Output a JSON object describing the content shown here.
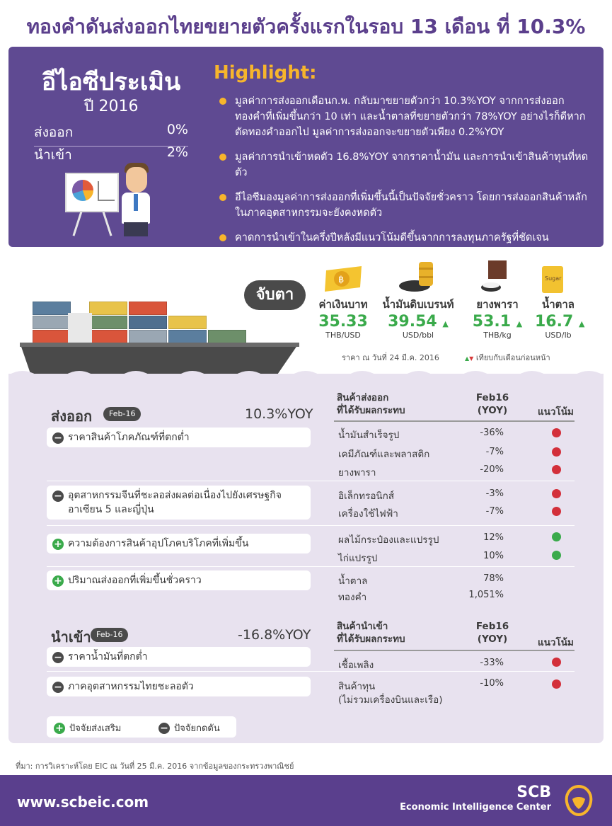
{
  "title": "ทองคำดันส่งออกไทยขยายตัวครั้งแรกในรอบ 13 เดือน ที่ 10.3%",
  "hero": {
    "eic_title": "อีไอซีประเมิน",
    "year": "ปี 2016",
    "export_label": "ส่งออก",
    "export_value": "0%",
    "import_label": "นำเข้า",
    "import_value": "2%",
    "highlight_title": "Highlight:",
    "highlights": [
      "มูลค่าการส่งออกเดือนก.พ. กลับมาขยายตัวกว่า 10.3%YOY จากการส่งออกทองคำที่เพิ่มขึ้นกว่า 10 เท่า และน้ำตาลที่ขยายตัวกว่า 78%YOY อย่างไรก็ดีหากตัดทองคำออกไป มูลค่าการส่งออกจะขยายตัวเพียง 0.2%YOY",
      "มูลค่าการนำเข้าหดตัว 16.8%YOY จากราคาน้ำมัน และการนำเข้าสินค้าทุนที่หดตัว",
      "อีไอซีมองมูลค่าการส่งออกที่เพิ่มขึ้นนี้เป็นปัจจัยชั่วคราว โดยการส่งออกสินค้าหลักในภาคอุตสาหกรรมจะยังคงหดตัว",
      "คาดการนำเข้าในครึ่งปีหลังมีแนวโน้มดีขึ้นจากการลงทุนภาครัฐที่ชัดเจน"
    ]
  },
  "watch": {
    "label": "จับตา",
    "items": [
      {
        "name": "ค่าเงินบาท",
        "value": "35.33",
        "unit": "THB/USD",
        "arrow": ""
      },
      {
        "name": "น้ำมันดิบเบรนท์",
        "value": "39.54",
        "unit": "USD/bbl",
        "arrow": "▲"
      },
      {
        "name": "ยางพารา",
        "value": "53.1",
        "unit": "THB/kg",
        "arrow": "▲"
      },
      {
        "name": "น้ำตาล",
        "value": "16.7",
        "unit": "USD/lb",
        "arrow": "▲"
      }
    ],
    "price_note": "ราคา ณ วันที่ 24 มี.ค. 2016",
    "compare_note": "เทียบกับเดือนก่อนหน้า",
    "sugar_label": "Sugar"
  },
  "exports": {
    "label": "ส่งออก",
    "badge": "Feb-16",
    "yoy": "10.3%YOY",
    "col_product": "สินค้าส่งออก",
    "col_product2": "ที่ได้รับผลกระทบ",
    "col_period": "Feb16",
    "col_period2": "(YOY)",
    "col_trend": "แนวโน้ม",
    "factors": [
      "ราคาสินค้าโภคภัณฑ์ที่ตกต่ำ",
      "อุตสาหกรรมจีนที่ชะลอส่งผลต่อเนื่องไปยังเศรษฐกิจอาเซียน 5 และญี่ปุ่น",
      "ความต้องการสินค้าอุปโภคบริโภคที่เพิ่มขึ้น",
      "ปริมาณส่งออกที่เพิ่มขึ้นชั่วคราว"
    ],
    "rows": [
      {
        "name": "น้ำมันสำเร็จรูป",
        "value": "-36%"
      },
      {
        "name": "เคมีภัณฑ์และพลาสติก",
        "value": "-7%"
      },
      {
        "name": "ยางพารา",
        "value": "-20%"
      },
      {
        "name": "อิเล็กทรอนิกส์",
        "value": "-3%"
      },
      {
        "name": "เครื่องใช้ไฟฟ้า",
        "value": "-7%"
      },
      {
        "name": "ผลไม้กระป๋องและแปรรูป",
        "value": "12%"
      },
      {
        "name": "ไก่แปรรูป",
        "value": "10%"
      },
      {
        "name": "น้ำตาล",
        "value": "78%"
      },
      {
        "name": "ทองคำ",
        "value": "1,051%"
      }
    ]
  },
  "imports": {
    "label": "นำเข้า",
    "badge": "Feb-16",
    "yoy": "-16.8%YOY",
    "col_product": "สินค้านำเข้า",
    "col_product2": "ที่ได้รับผลกระทบ",
    "col_period": "Feb16",
    "col_period2": "(YOY)",
    "col_trend": "แนวโน้ม",
    "factors": [
      "ราคาน้ำมันที่ตกต่ำ",
      "ภาคอุตสาหกรรมไทยชะลอตัว"
    ],
    "rows": [
      {
        "name": "เชื้อเพลิง",
        "value": "-33%"
      },
      {
        "name": "สินค้าทุน",
        "value": "-10%"
      }
    ],
    "row2_note": "(ไม่รวมเครื่องบินและเรือ)"
  },
  "legend": {
    "positive": "ปัจจัยส่งเสริม",
    "negative": "ปัจจัยกดดัน"
  },
  "source": "ที่มา: การวิเคราะห์โดย EIC ณ วันที่ 25 มี.ค. 2016 จากข้อมูลของกระทรวงพาณิชย์",
  "footer": {
    "url": "www.scbeic.com",
    "brand": "SCB",
    "center": "Economic Intelligence Center"
  },
  "colors": {
    "purple": "#5f4a92",
    "accent": "#f7b52c",
    "green": "#3aaa4b",
    "red": "#d32f3a"
  }
}
